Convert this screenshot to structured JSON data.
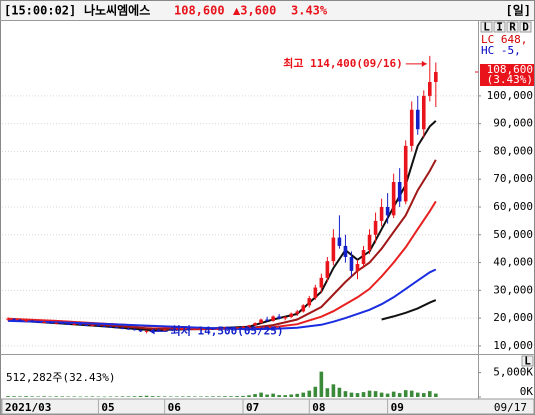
{
  "header": {
    "time": "[15:00:02]",
    "name": "나노씨엠에스",
    "price": "108,600",
    "change": "▲3,600",
    "rate": "3.43%",
    "period": "[일]"
  },
  "chart_data": {
    "type": "candlestick",
    "xlim": [
      -1,
      78
    ],
    "xticks": [
      {
        "value": -1,
        "label": "2021/03"
      },
      {
        "value": 15,
        "label": "05"
      },
      {
        "value": 26,
        "label": "06"
      },
      {
        "value": 39,
        "label": "07"
      },
      {
        "value": 50,
        "label": "08"
      },
      {
        "value": 63,
        "label": "09"
      }
    ],
    "last_date": "09/17",
    "ylim": [
      7800,
      126600
    ],
    "yticks": [
      {
        "value": 10000,
        "label": "10,000"
      },
      {
        "value": 20000,
        "label": "20,000"
      },
      {
        "value": 30000,
        "label": "30,000"
      },
      {
        "value": 40000,
        "label": "40,000"
      },
      {
        "value": 50000,
        "label": "50,000"
      },
      {
        "value": 60000,
        "label": "60,000"
      },
      {
        "value": 70000,
        "label": "70,000"
      },
      {
        "value": 80000,
        "label": "80,000"
      },
      {
        "value": 90000,
        "label": "90,000"
      },
      {
        "value": 100000,
        "label": "100,000"
      }
    ],
    "grid": true,
    "toolbar": [
      "L",
      "I",
      "R",
      "D"
    ],
    "info": [
      {
        "text": "LC 648,",
        "color": "#d00000"
      },
      {
        "text": "HC -5,",
        "color": "#0000c0"
      }
    ],
    "price_tag": {
      "value": 108600,
      "label": "108,600",
      "change_label": "(3.43%)",
      "color": "#e8131b"
    },
    "candles": {
      "up_color": "#e8131b",
      "down_color": "#1420c8",
      "open": [
        19500,
        19800,
        19400,
        18900,
        19200,
        18700,
        18400,
        18600,
        18100,
        18300,
        17900,
        17700,
        17900,
        17500,
        17300,
        17500,
        17100,
        16900,
        16700,
        16500,
        16200,
        16000,
        15700,
        15200,
        15400,
        15800,
        15700,
        15900,
        15800,
        16000,
        16200,
        15900,
        16100,
        16400,
        16200,
        16000,
        16300,
        16600,
        16400,
        16700,
        17000,
        17400,
        18200,
        19500,
        19000,
        20600,
        19900,
        20400,
        21600,
        22400,
        24600,
        27200,
        31000,
        34500,
        40500,
        49000,
        46000,
        42000,
        37000,
        39500,
        44500,
        50000,
        55000,
        60000,
        57000,
        69000,
        62000,
        82000,
        95000,
        88000,
        100000,
        105000
      ],
      "high": [
        20300,
        20000,
        19700,
        19500,
        19400,
        19000,
        18900,
        18800,
        18500,
        18600,
        18200,
        18100,
        18000,
        17800,
        17700,
        17600,
        17400,
        17200,
        17000,
        16800,
        16600,
        16300,
        15900,
        15600,
        16000,
        16200,
        16100,
        16300,
        16200,
        16500,
        16400,
        16300,
        16600,
        16700,
        16500,
        16400,
        16800,
        16900,
        16800,
        17200,
        17600,
        18500,
        19800,
        20500,
        21000,
        21500,
        20800,
        22000,
        23000,
        25000,
        28000,
        32000,
        36000,
        42000,
        52000,
        57000,
        50000,
        44000,
        41000,
        46000,
        52000,
        58000,
        63000,
        65000,
        72000,
        74000,
        84000,
        98000,
        100000,
        102000,
        114400,
        112000
      ],
      "low": [
        19000,
        19200,
        18700,
        18600,
        18500,
        18200,
        18100,
        17900,
        17700,
        17800,
        17500,
        17400,
        17300,
        17100,
        17000,
        16900,
        16700,
        16500,
        16300,
        16000,
        15800,
        15500,
        15000,
        14500,
        15200,
        15500,
        15400,
        15600,
        15500,
        15800,
        15800,
        15700,
        15900,
        16000,
        15900,
        15800,
        16100,
        16200,
        16100,
        16500,
        16800,
        17200,
        18000,
        18800,
        18700,
        19500,
        19200,
        20000,
        20800,
        22000,
        23800,
        26500,
        29000,
        33000,
        39000,
        45000,
        40000,
        35000,
        34000,
        38000,
        43000,
        47000,
        53000,
        54000,
        56000,
        60000,
        61000,
        80000,
        86000,
        85000,
        98000,
        96000
      ],
      "close": [
        19800,
        19400,
        18900,
        19200,
        18700,
        18400,
        18600,
        18100,
        18300,
        17900,
        17700,
        17900,
        17500,
        17300,
        17500,
        17100,
        16900,
        16700,
        16500,
        16200,
        16000,
        15700,
        15200,
        15400,
        15800,
        15700,
        15900,
        15800,
        16000,
        16200,
        15900,
        16100,
        16400,
        16200,
        16000,
        16300,
        16600,
        16400,
        16700,
        17000,
        17400,
        18200,
        19500,
        19000,
        20600,
        19900,
        20400,
        21600,
        22400,
        24600,
        27200,
        31000,
        34500,
        40500,
        49000,
        46000,
        42000,
        37000,
        39500,
        44500,
        50000,
        55000,
        60000,
        57000,
        69000,
        62000,
        82000,
        95000,
        88000,
        100000,
        105000,
        108600
      ]
    },
    "series": [
      {
        "color": "#111111",
        "x": [
          0,
          8,
          16,
          24,
          32,
          40,
          44,
          48,
          52,
          54,
          56,
          58,
          60,
          62,
          64,
          66,
          68,
          70,
          71
        ],
        "values": [
          19300,
          18200,
          17000,
          15600,
          16100,
          16900,
          19500,
          21500,
          29500,
          38000,
          44500,
          41000,
          44000,
          52000,
          60000,
          68000,
          82000,
          89000,
          91000
        ]
      },
      {
        "color": "#a01818",
        "x": [
          0,
          8,
          16,
          24,
          32,
          40,
          44,
          48,
          52,
          54,
          56,
          58,
          60,
          62,
          64,
          66,
          68,
          70,
          71
        ],
        "values": [
          19600,
          18600,
          17500,
          16200,
          16000,
          16400,
          17500,
          19500,
          24000,
          28500,
          33000,
          37000,
          40000,
          45000,
          51000,
          57000,
          66000,
          73000,
          77000
        ]
      },
      {
        "color": "#e82020",
        "x": [
          0,
          8,
          16,
          24,
          32,
          40,
          44,
          48,
          52,
          54,
          56,
          58,
          60,
          62,
          64,
          66,
          68,
          70,
          71
        ],
        "values": [
          19800,
          19000,
          18000,
          17000,
          16200,
          16200,
          16700,
          17800,
          20500,
          22500,
          25000,
          27500,
          30500,
          35000,
          40000,
          45500,
          52000,
          58500,
          62000
        ]
      },
      {
        "color": "#1a2ee0",
        "x": [
          0,
          8,
          16,
          24,
          32,
          40,
          44,
          48,
          52,
          54,
          56,
          58,
          60,
          62,
          64,
          66,
          68,
          70,
          71
        ],
        "values": [
          19000,
          18500,
          17900,
          17200,
          16500,
          16000,
          16100,
          16500,
          17600,
          18700,
          20000,
          21500,
          23000,
          25000,
          27500,
          30500,
          33500,
          36500,
          37500
        ]
      },
      {
        "color": "#111111",
        "x": [
          62,
          64,
          66,
          68,
          70,
          71
        ],
        "values": [
          19500,
          20600,
          21900,
          23500,
          25600,
          26500
        ]
      }
    ],
    "annotations": [
      {
        "text": "최고 114,400(09/16)",
        "color": "#e8131b"
      },
      {
        "text": "최저 14,500(05/25)",
        "color": "#1420c8"
      }
    ],
    "volume": {
      "type": "bar",
      "label": "512,282주(32.43%)",
      "color": "#3a8a3a",
      "toolbar": "L",
      "ylim": [
        0,
        8000
      ],
      "yticks": [
        {
          "value": 0,
          "label": "0K"
        },
        {
          "value": 5000,
          "label": "5,000K"
        }
      ],
      "values": [
        180,
        150,
        130,
        160,
        120,
        110,
        140,
        100,
        130,
        120,
        100,
        110,
        90,
        100,
        120,
        90,
        80,
        100,
        110,
        130,
        120,
        150,
        200,
        260,
        180,
        140,
        120,
        110,
        100,
        120,
        130,
        110,
        100,
        120,
        140,
        130,
        160,
        150,
        180,
        220,
        350,
        600,
        900,
        500,
        700,
        400,
        380,
        520,
        650,
        900,
        1300,
        2100,
        5200,
        1800,
        2600,
        1900,
        1200,
        900,
        800,
        1000,
        1300,
        1200,
        900,
        700,
        1100,
        800,
        1400,
        1300,
        900,
        800,
        1200,
        700
      ]
    }
  }
}
